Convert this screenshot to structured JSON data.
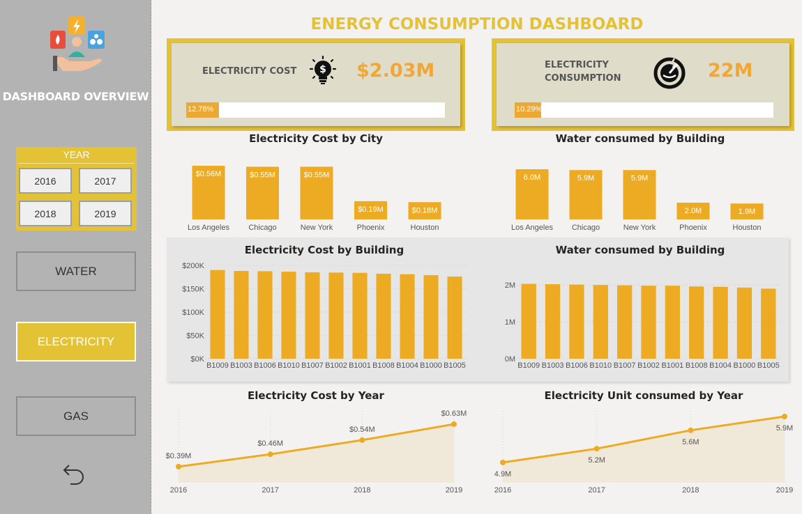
{
  "sidebar": {
    "title": "DASHBOARD OVERVIEW",
    "year_filter": {
      "title": "YEAR",
      "years": [
        "2016",
        "2017",
        "2018",
        "2019"
      ]
    },
    "nav": [
      {
        "label": "WATER",
        "active": false
      },
      {
        "label": "ELECTRICITY",
        "active": true
      },
      {
        "label": "GAS",
        "active": false
      }
    ],
    "back_icon": "undo-arrow-icon"
  },
  "header": {
    "title": "ENERGY CONSUMPTION DASHBOARD"
  },
  "kpis": {
    "cost": {
      "label": "ELECTRICITY COST",
      "value": "$2.03M",
      "progress_text": "12.78%",
      "progress": 0.1278,
      "icon": "dollar-lightbulb-icon"
    },
    "consumption": {
      "label_line1": "ELECTRICITY",
      "label_line2": "CONSUMPTION",
      "value": "22M",
      "progress_text": "10.29%",
      "progress": 0.1029,
      "icon": "power-meter-icon"
    }
  },
  "colors": {
    "accent": "#e4c236",
    "bar": "#edab23",
    "line": "#edab23",
    "area": "#f0e8d8",
    "sidebar": "#b3b3b3"
  },
  "chart_data": [
    {
      "id": "cost_city",
      "type": "bar",
      "title": "Electricity Cost by City",
      "categories": [
        "Los Angeles",
        "Chicago",
        "New York",
        "Phoenix",
        "Houston"
      ],
      "values": [
        0.56,
        0.55,
        0.55,
        0.19,
        0.18
      ],
      "data_labels": [
        "$0.56M",
        "$0.55M",
        "$0.55M",
        "$0.19M",
        "$0.18M"
      ]
    },
    {
      "id": "water_city",
      "type": "bar",
      "title": "Water consumed by Building",
      "categories": [
        "Los Angeles",
        "Chicago",
        "New York",
        "Phoenix",
        "Houston"
      ],
      "values": [
        6.0,
        5.9,
        5.9,
        2.0,
        1.9
      ],
      "data_labels": [
        "6.0M",
        "5.9M",
        "5.9M",
        "2.0M",
        "1.9M"
      ]
    },
    {
      "id": "cost_building",
      "type": "bar",
      "title": "Electricity Cost by Building",
      "categories": [
        "B1009",
        "B1003",
        "B1006",
        "B1010",
        "B1007",
        "B1002",
        "B1001",
        "B1008",
        "B1004",
        "B1000",
        "B1005"
      ],
      "values": [
        190000,
        188000,
        187500,
        186500,
        185000,
        184500,
        184000,
        182000,
        181000,
        179000,
        176000
      ],
      "y_ticks": [
        "$0K",
        "$50K",
        "$100K",
        "$150K",
        "$200K"
      ],
      "ylim": [
        0,
        200000
      ],
      "grid": true
    },
    {
      "id": "water_building",
      "type": "bar",
      "title": "Water consumed by Building",
      "categories": [
        "B1009",
        "B1003",
        "B1006",
        "B1010",
        "B1007",
        "B1002",
        "B1001",
        "B1008",
        "B1004",
        "B1000",
        "B1005"
      ],
      "values": [
        2030000,
        2020000,
        2010000,
        2000000,
        1990000,
        1980000,
        1980000,
        1960000,
        1950000,
        1930000,
        1900000
      ],
      "y_ticks": [
        "0M",
        "1M",
        "2M"
      ],
      "ylim": [
        0,
        2400000
      ],
      "grid": true
    },
    {
      "id": "cost_year",
      "type": "area",
      "title": "Electricity Cost by Year",
      "x": [
        "2016",
        "2017",
        "2018",
        "2019"
      ],
      "values": [
        0.39,
        0.46,
        0.54,
        0.63
      ],
      "data_labels": [
        "$0.39M",
        "$0.46M",
        "$0.54M",
        "$0.63M"
      ],
      "label_position": "above"
    },
    {
      "id": "unit_year",
      "type": "area",
      "title": "Electricity Unit consumed by Year",
      "x": [
        "2016",
        "2017",
        "2018",
        "2019"
      ],
      "values": [
        4.9,
        5.2,
        5.6,
        5.9
      ],
      "data_labels": [
        "4.9M",
        "5.2M",
        "5.6M",
        "5.9M"
      ],
      "label_position": "below"
    }
  ]
}
